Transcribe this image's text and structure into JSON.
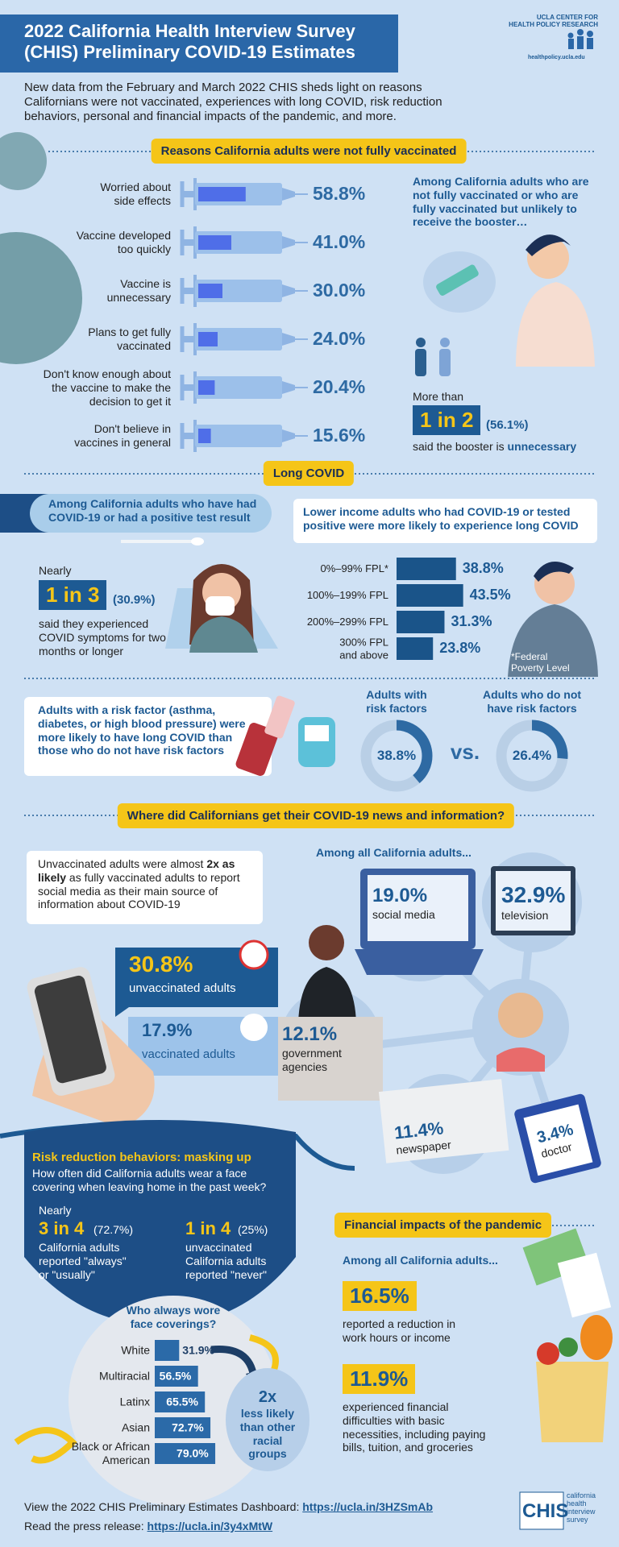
{
  "header": {
    "title_lines": [
      "2022 California Health Interview Survey",
      "(CHIS) Preliminary COVID-19 Estimates"
    ],
    "logo_lines": [
      "UCLA CENTER FOR",
      "HEALTH POLICY RESEARCH"
    ],
    "logo_url": "healthpolicy.ucla.edu",
    "intro": "New data from the February and March 2022 CHIS sheds light on reasons Californians were not vaccinated, experiences with long COVID, risk reduction behaviors, personal and financial impacts of the pandemic, and more."
  },
  "vaccination": {
    "heading": "Reasons California adults were not fully vaccinated",
    "reasons": [
      {
        "label": [
          "Worried about",
          "side effects"
        ],
        "value": 58.8,
        "value_label": "58.8%"
      },
      {
        "label": [
          "Vaccine developed",
          "too quickly"
        ],
        "value": 41.0,
        "value_label": "41.0%"
      },
      {
        "label": [
          "Vaccine is",
          "unnecessary"
        ],
        "value": 30.0,
        "value_label": "30.0%"
      },
      {
        "label": [
          "Plans to get fully",
          "vaccinated"
        ],
        "value": 24.0,
        "value_label": "24.0%"
      },
      {
        "label": [
          "Don't know enough about",
          "the vaccine to make the",
          "decision to get it"
        ],
        "value": 20.4,
        "value_label": "20.4%"
      },
      {
        "label": [
          "Don't believe in",
          "vaccines in general"
        ],
        "value": 15.6,
        "value_label": "15.6%"
      }
    ],
    "booster": {
      "intro": "Among California adults who are not fully vaccinated or who are fully vaccinated but unlikely to receive the booster…",
      "lead": "More than",
      "ratio": "1 in 2",
      "percent": "(56.1%)",
      "text": "said the booster is ",
      "emphasis": "unnecessary"
    }
  },
  "long_covid": {
    "heading": "Long COVID",
    "banner": "Among California adults who have had COVID-19 or had a positive test result",
    "lead": "Nearly",
    "ratio": "1 in 3",
    "percent": "(30.9%)",
    "text": "said they experienced COVID symptoms for two months or longer",
    "income_title": "Lower income adults who had COVID-19 or tested positive were more likely to experience long COVID",
    "income": [
      {
        "label": [
          "0%–99% FPL*"
        ],
        "value": 38.8,
        "value_label": "38.8%"
      },
      {
        "label": [
          "100%–199% FPL"
        ],
        "value": 43.5,
        "value_label": "43.5%"
      },
      {
        "label": [
          "200%–299% FPL"
        ],
        "value": 31.3,
        "value_label": "31.3%"
      },
      {
        "label": [
          "300% FPL",
          "and above"
        ],
        "value": 23.8,
        "value_label": "23.8%"
      }
    ],
    "footnote": [
      "*Federal",
      "Poverty Level"
    ],
    "risk_text": "Adults with a risk factor (asthma, diabetes, or high blood pressure) were more likely to have long COVID than those who do not have risk factors",
    "risk_groups": [
      {
        "label": [
          "Adults with",
          "risk factors"
        ],
        "value": 38.8,
        "value_label": "38.8%"
      },
      {
        "label": [
          "Adults who do not",
          "have risk factors"
        ],
        "value": 26.4,
        "value_label": "26.4%"
      }
    ],
    "vs": "vs."
  },
  "news": {
    "heading": "Where did Californians get their COVID-19 news and information?",
    "callout": [
      "Unvaccinated adults were almost ",
      "2x as likely",
      " as fully vaccinated adults to report social media as their main source of information about COVID-19"
    ],
    "social_media": [
      {
        "value_label": "30.8%",
        "label": "unvaccinated adults"
      },
      {
        "value_label": "17.9%",
        "label": "vaccinated adults"
      }
    ],
    "sources_title": "Among all California adults...",
    "sources": [
      {
        "value_label": "19.0%",
        "label": [
          "social media"
        ]
      },
      {
        "value_label": "32.9%",
        "label": [
          "television"
        ]
      },
      {
        "value_label": "12.1%",
        "label": [
          "government",
          "agencies"
        ]
      },
      {
        "value_label": "11.4%",
        "label": [
          "newspaper"
        ]
      },
      {
        "value_label": "3.4%",
        "label": [
          "doctor"
        ]
      }
    ]
  },
  "masking": {
    "heading": "Risk reduction behaviors: masking up",
    "question": "How often did California adults wear a face covering when leaving home in the past week?",
    "stats": [
      {
        "lead": "Nearly",
        "ratio": "3 in 4",
        "percent": "(72.7%)",
        "text": [
          "California adults",
          "reported \"always\"",
          "or \"usually\""
        ]
      },
      {
        "ratio": "1 in 4",
        "percent": "(25%)",
        "text": [
          "unvaccinated",
          "California adults",
          "reported \"never\""
        ]
      }
    ],
    "groups_title": [
      "Who always wore",
      "face coverings?"
    ],
    "groups": [
      {
        "label": [
          "White"
        ],
        "value": 31.9,
        "value_label": "31.9%"
      },
      {
        "label": [
          "Multiracial"
        ],
        "value": 56.5,
        "value_label": "56.5%"
      },
      {
        "label": [
          "Latinx"
        ],
        "value": 65.5,
        "value_label": "65.5%"
      },
      {
        "label": [
          "Asian"
        ],
        "value": 72.7,
        "value_label": "72.7%"
      },
      {
        "label": [
          "Black or African",
          "American"
        ],
        "value": 79.0,
        "value_label": "79.0%"
      }
    ],
    "comparison": {
      "big": "2x",
      "text": [
        "less likely",
        "than other",
        "racial",
        "groups"
      ]
    }
  },
  "financial": {
    "heading": "Financial impacts of the pandemic",
    "subtitle": "Among all California adults...",
    "items": [
      {
        "value_label": "16.5%",
        "text": [
          "reported a reduction in",
          "work hours or income"
        ]
      },
      {
        "value_label": "11.9%",
        "text": [
          "experienced financial",
          "difficulties with basic",
          "necessities, including paying",
          "bills, tuition, and groceries"
        ]
      }
    ]
  },
  "footer": {
    "links": [
      {
        "text": "View the 2022 CHIS Preliminary Estimates Dashboard: ",
        "url": "https://ucla.in/3HZSmAb"
      },
      {
        "text": "Read the press release: ",
        "url": "https://ucla.in/3y4xMtW"
      }
    ],
    "logo": "CHIS",
    "logo_text": [
      "california",
      "health",
      "interview",
      "survey"
    ]
  }
}
